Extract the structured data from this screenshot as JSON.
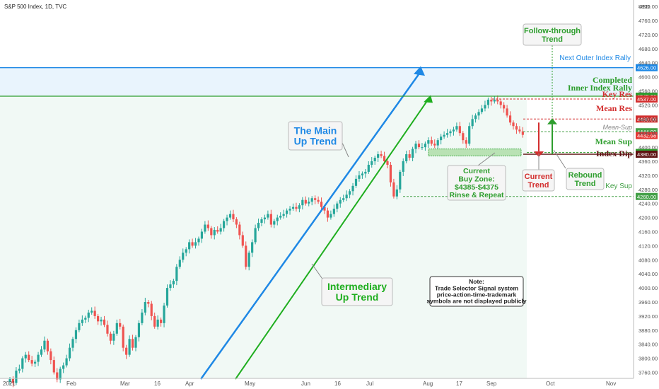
{
  "header": {
    "symbol": "S&P 500 Index, 1D, TVC"
  },
  "chart_data": {
    "type": "candlestick",
    "y_unit": "USD",
    "ylim": [
      3720,
      4800
    ],
    "y_ticks": [
      3760,
      3800,
      3840,
      3880,
      3920,
      3960,
      4000,
      4040,
      4080,
      4120,
      4160,
      4200,
      4240,
      4280,
      4320,
      4360,
      4400,
      4440,
      4480,
      4520,
      4560,
      4600,
      4640,
      4680,
      4720,
      4760,
      4800
    ],
    "x_labels": [
      "2021",
      "Feb",
      "Mar",
      "16",
      "Apr",
      "May",
      "Jun",
      "16",
      "Jul",
      "Aug",
      "17",
      "Sep",
      "Oct",
      "Nov"
    ],
    "series": [
      {
        "values": [
          3741,
          3730,
          3765,
          3770,
          3800,
          3810,
          3795,
          3785,
          3790,
          3810,
          3825,
          3850,
          3820,
          3795,
          3760,
          3740,
          3770,
          3780,
          3800,
          3830,
          3855,
          3880,
          3900,
          3910,
          3915,
          3930,
          3935,
          3920,
          3905,
          3910,
          3895,
          3870,
          3850,
          3870,
          3900,
          3890,
          3830,
          3810,
          3855,
          3830,
          3860,
          3900,
          3930,
          3960,
          3955,
          3920,
          3890,
          3910,
          3900,
          3950,
          4000,
          4010,
          4020,
          4060,
          4080,
          4100,
          4110,
          4130,
          4120,
          4130,
          4140,
          4160,
          4180,
          4170,
          4150,
          4165,
          4160,
          4170,
          4190,
          4200,
          4210,
          4195,
          4180,
          4150,
          4120,
          4060,
          4100,
          4130,
          4170,
          4185,
          4195,
          4200,
          4210,
          4180,
          4190,
          4200,
          4205,
          4210,
          4220,
          4225,
          4230,
          4225,
          4235,
          4250,
          4240,
          4245,
          4255,
          4250,
          4245,
          4230,
          4220,
          4200,
          4210,
          4225,
          4240,
          4250,
          4255,
          4265,
          4275,
          4290,
          4310,
          4320,
          4325,
          4330,
          4350,
          4360,
          4370,
          4380,
          4375,
          4360,
          4350,
          4300,
          4260,
          4280,
          4330,
          4360,
          4380,
          4370,
          4395,
          4410,
          4400,
          4400,
          4410,
          4420,
          4410,
          4405,
          4420,
          4430,
          4435,
          4440,
          4445,
          4450,
          4460,
          4440,
          4420,
          4410,
          4460,
          4480,
          4490,
          4500,
          4510,
          4520,
          4535,
          4530,
          4535,
          4530,
          4520,
          4510,
          4490,
          4470,
          4460,
          4450,
          4445,
          4435
        ]
      }
    ],
    "levels": [
      {
        "price": 4626.0,
        "label": "Next Outer Index Rally",
        "color": "#1e88e5",
        "tag": "4626.00"
      },
      {
        "price": 4545.0,
        "label": "Completed Inner Index Rally",
        "color": "#2e9e2e",
        "tag": "4545.00"
      },
      {
        "price": 4537.0,
        "label": "Key Res",
        "color": "#d32f2f",
        "tag": "4537.00"
      },
      {
        "price": 4480.0,
        "label": "Mean Res",
        "color": "#d32f2f",
        "tag": "4480.00"
      },
      {
        "price": 4444.0,
        "label": "Mean-Sup",
        "color": "#43a047",
        "tag": "4444.00"
      },
      {
        "price": 4432.98,
        "label": "",
        "color": "#e53935",
        "tag": "4432.98"
      },
      {
        "price": 4385.0,
        "label": "Mean Sup",
        "color": "#2e9e2e",
        "tag": "4385.00"
      },
      {
        "price": 4380.0,
        "label": "Index Dip",
        "color": "#5d1010",
        "tag": "4380.00"
      },
      {
        "price": 4260.0,
        "label": "Key Sup",
        "color": "#43a047",
        "tag": "4260.00"
      }
    ],
    "callouts": {
      "main_trend": [
        "The Main",
        "Up Trend"
      ],
      "intermediary_trend": [
        "Intermediary",
        "Up Trend"
      ],
      "follow_through": [
        "Follow-through",
        "Trend"
      ],
      "current_trend": [
        "Current",
        "Trend"
      ],
      "rebound_trend": [
        "Rebound",
        "Trend"
      ],
      "buy_zone": [
        "Current",
        "Buy Zone:",
        "$4385-$4375",
        "Rinse & Repeat"
      ],
      "note": [
        "Note:",
        "Trade Selector Signal system",
        "price-action-time-trademark",
        "symbols are not displayed publicly"
      ]
    },
    "colors": {
      "up": "#26a69a",
      "down": "#ef5350",
      "main_trend": "#1e88e5",
      "intermediary": "#1fae1f"
    }
  }
}
